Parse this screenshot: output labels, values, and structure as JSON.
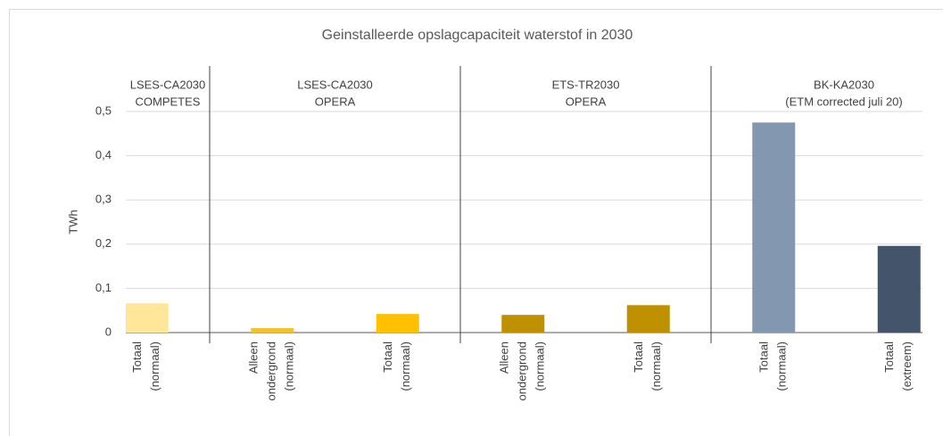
{
  "chart_data": {
    "type": "bar",
    "title": "Geinstalleerde opslagcapaciteit waterstof in 2030",
    "y_label": "TWh",
    "categories": [
      [
        "Totaal",
        "(normaal)"
      ],
      [
        "Alleen",
        "ondergrond",
        "(normaal)"
      ],
      [
        "Totaal",
        "(normaal)"
      ],
      [
        "Alleen",
        "ondergrond",
        "(normaal)"
      ],
      [
        "Totaal",
        "(normaal)"
      ],
      [
        "Totaal",
        "(normaal)"
      ],
      [
        "Totaal",
        "(extreem)"
      ]
    ],
    "values": [
      0.066,
      0.01,
      0.042,
      0.04,
      0.062,
      0.475,
      0.196
    ],
    "colors": [
      "#ffe699",
      "#f5c02a",
      "#ffc000",
      "#bf9000",
      "#bf9000",
      "#8497b0",
      "#44546a"
    ],
    "groups": [
      {
        "label": [
          "LSES-CA2030",
          "COMPETES"
        ],
        "span": [
          0,
          0
        ]
      },
      {
        "label": [
          "LSES-CA2030",
          "OPERA"
        ],
        "span": [
          1,
          2
        ]
      },
      {
        "label": [
          "ETS-TR2030",
          "OPERA"
        ],
        "span": [
          3,
          4
        ]
      },
      {
        "label": [
          "BK-KA2030",
          "(ETM corrected juli 20)"
        ],
        "span": [
          5,
          6
        ]
      }
    ],
    "ylim": [
      0,
      0.5
    ],
    "yticks": [
      0,
      {
        "value": 0.1,
        "label": "0,1"
      },
      {
        "value": 0.2,
        "label": "0,2"
      },
      {
        "value": 0.3,
        "label": "0,3"
      },
      {
        "value": 0.4,
        "label": "0,4"
      },
      {
        "value": 0.5,
        "label": "0,5"
      }
    ],
    "grid": true
  }
}
